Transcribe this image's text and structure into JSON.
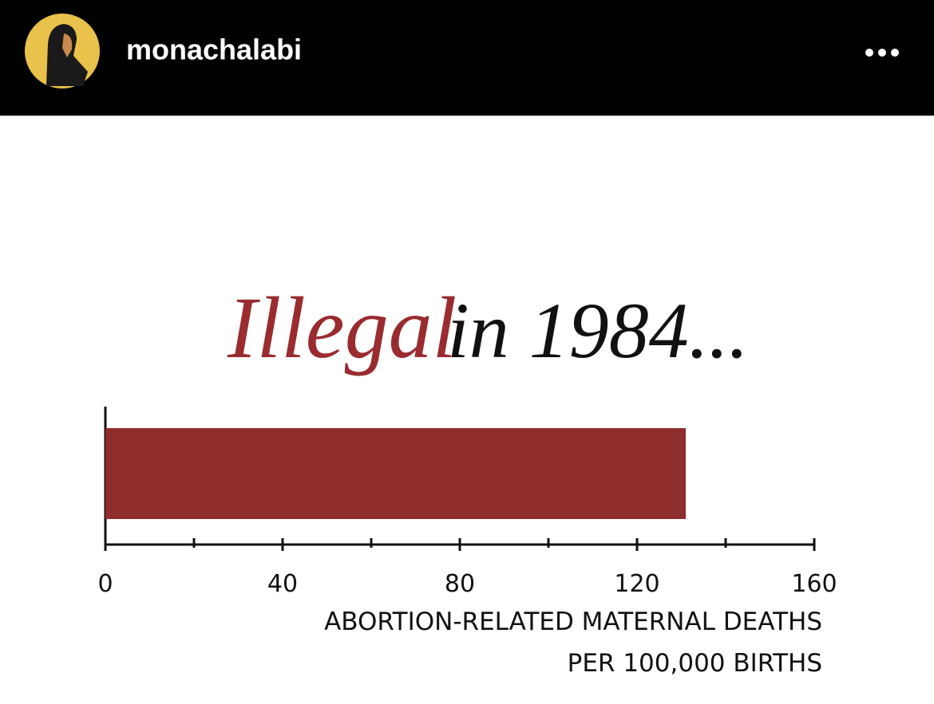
{
  "header": {
    "username": "monachalabi"
  },
  "chart_data": {
    "type": "bar",
    "orientation": "horizontal",
    "title": [
      "Illegal",
      "in 1984..."
    ],
    "title_colors": [
      "#9a2c30",
      "#111111"
    ],
    "values": [
      131
    ],
    "color": "#8f2c2c",
    "xlim": [
      0,
      160
    ],
    "xticks": [
      0,
      40,
      80,
      120,
      160
    ],
    "minor_xticks": [
      20,
      60,
      100,
      140
    ],
    "xlabel": [
      "ABORTION-RELATED MATERNAL DEATHS",
      "PER 100,000 BIRTHS"
    ]
  }
}
